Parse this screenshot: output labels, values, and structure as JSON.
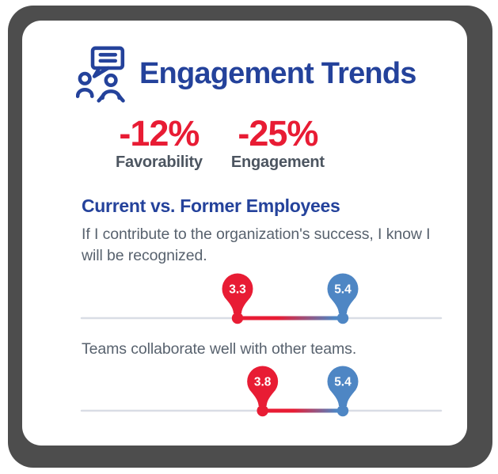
{
  "colors": {
    "navy": "#24429b",
    "red": "#e81c34",
    "blue": "#4e86c4",
    "text": "#58626e",
    "label": "#4c5560",
    "axis": "#d9dde5",
    "shadow": "#4d4d4d",
    "card_bg": "#ffffff",
    "pin_label": "#ffffff"
  },
  "header": {
    "title": "Engagement Trends",
    "icon": "people-conversation-icon"
  },
  "stats": [
    {
      "value": "-12%",
      "label": "Favorability"
    },
    {
      "value": "-25%",
      "label": "Engagement"
    }
  ],
  "section": {
    "heading": "Current vs. Former Employees"
  },
  "chart_data": [
    {
      "type": "scatter",
      "question": "If I contribute to the organization's success, I know I will be recognized.",
      "points": [
        {
          "label": "3.3",
          "value": 3.3,
          "color_key": "red"
        },
        {
          "label": "5.4",
          "value": 5.4,
          "color_key": "blue"
        }
      ],
      "axis": {
        "min": 0.2,
        "max": 7.35,
        "gridline": false,
        "line_color_key": "axis"
      },
      "connector": "gradient-red-to-blue",
      "legend": "none"
    },
    {
      "type": "scatter",
      "question": "Teams collaborate well with other teams.",
      "points": [
        {
          "label": "3.8",
          "value": 3.8,
          "color_key": "red"
        },
        {
          "label": "5.4",
          "value": 5.4,
          "color_key": "blue"
        }
      ],
      "axis": {
        "min": 0.2,
        "max": 7.35,
        "gridline": false,
        "line_color_key": "axis"
      },
      "connector": "gradient-red-to-blue",
      "legend": "none"
    }
  ]
}
